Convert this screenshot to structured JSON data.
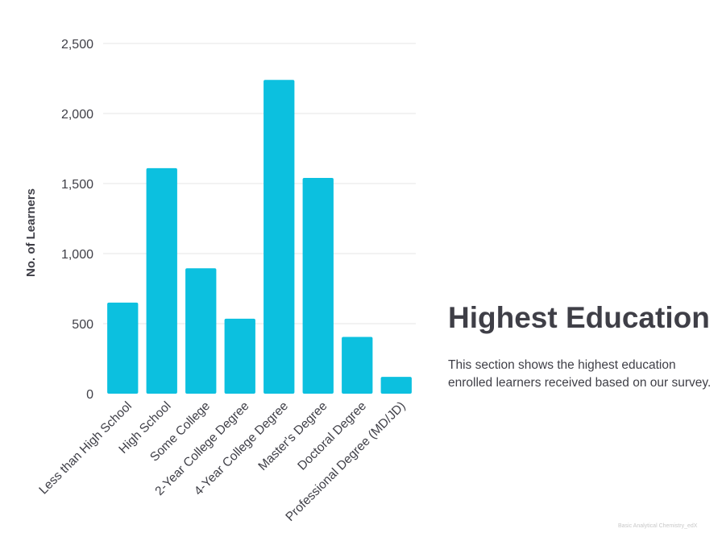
{
  "chart_data": {
    "type": "bar",
    "categories": [
      "Less than High School",
      "High School",
      "Some College",
      "2-Year College Degree",
      "4-Year College Degree",
      "Master's Degree",
      "Doctoral Degree",
      "Professional Degree (MD/JD)"
    ],
    "values": [
      650,
      1610,
      895,
      535,
      2240,
      1540,
      405,
      120
    ],
    "ylabel": "No. of Learners",
    "xlabel": "",
    "ylim": [
      0,
      2500
    ],
    "yticks": [
      0,
      500,
      1000,
      1500,
      2000,
      2500
    ],
    "ytick_labels": [
      "0",
      "500",
      "1,000",
      "1,500",
      "2,000",
      "2,500"
    ],
    "grid": true,
    "bar_color": "#0cc0df"
  },
  "section": {
    "title": "Highest Education",
    "description": "This section shows the highest education enrolled learners received based on our survey."
  },
  "footnote": "Basic Analytical Chemistry_edX"
}
